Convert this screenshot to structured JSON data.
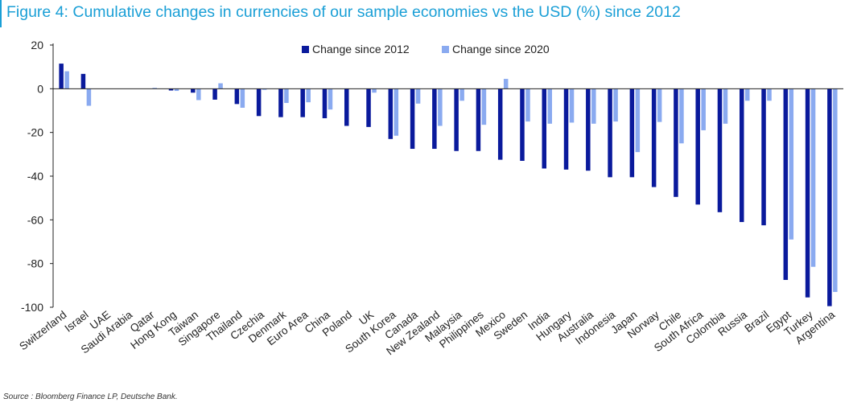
{
  "chart_data": {
    "type": "bar",
    "title": "Figure 4: Cumulative changes in currencies of our sample economies vs the USD (%) since 2012",
    "xlabel": "",
    "ylabel": "",
    "ylim": [
      -100,
      20
    ],
    "yticks": [
      20,
      0,
      -20,
      -40,
      -60,
      -80,
      -100
    ],
    "grid": false,
    "legend_position": "top-center",
    "categories": [
      "Switzerland",
      "Israel",
      "UAE",
      "Saudi Arabia",
      "Qatar",
      "Hong Kong",
      "Taiwan",
      "Singapore",
      "Thailand",
      "Czechia",
      "Denmark",
      "Euro Area",
      "China",
      "Poland",
      "UK",
      "South Korea",
      "Canada",
      "New Zealand",
      "Malaysia",
      "Philippines",
      "Mexico",
      "Sweden",
      "India",
      "Hungary",
      "Australia",
      "Indonesia",
      "Japan",
      "Norway",
      "Chile",
      "South Africa",
      "Colombia",
      "Russia",
      "Brazil",
      "Egypt",
      "Turkey",
      "Argentina"
    ],
    "series": [
      {
        "name": "Change since 2012",
        "color": "#0a1a9c",
        "values": [
          11.5,
          6.8,
          0,
          0,
          0,
          -0.8,
          -1.8,
          -5,
          -7,
          -12.5,
          -13,
          -13,
          -13.5,
          -17,
          -17.5,
          -23,
          -27.5,
          -27.5,
          -28.5,
          -28.5,
          -32.5,
          -33,
          -36.5,
          -37,
          -37.5,
          -40.5,
          -40.5,
          -45,
          -49.5,
          -53,
          -56.5,
          -61,
          -62.5,
          -87.5,
          -95.5,
          -99.5
        ]
      },
      {
        "name": "Change since 2020",
        "color": "#8aaaf0",
        "values": [
          8,
          -7.8,
          0,
          0,
          0.4,
          -1,
          -5.2,
          2.5,
          -8.7,
          -0.5,
          -6.5,
          -6.2,
          -9.5,
          0,
          -1.8,
          -21.5,
          -6.8,
          -17,
          -5.5,
          -16.5,
          4.5,
          -15,
          -16,
          -15.5,
          -16,
          -15,
          -29,
          -15.2,
          -25,
          -19,
          -16,
          -5.5,
          -5.5,
          -69,
          -81.5,
          -93
        ]
      }
    ]
  },
  "source": "Source : Bloomberg Finance LP, Deutsche Bank."
}
